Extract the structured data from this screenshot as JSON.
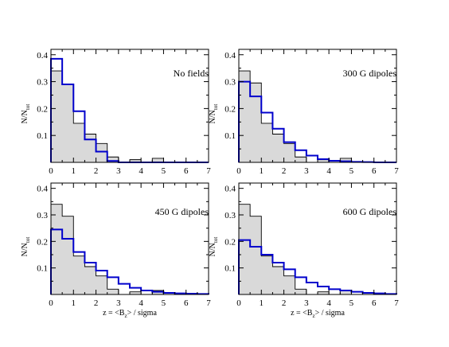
{
  "chart_data": [
    {
      "type": "histogram-step",
      "annotation": "No fields",
      "ylabel": "N/N",
      "ylabel_sub": "tot",
      "xlabel": "",
      "xlim": [
        0,
        7
      ],
      "ylim": [
        0,
        0.42
      ],
      "bin_width": 0.5,
      "x_ticks": [
        "0",
        "1",
        "2",
        "3",
        "4",
        "5",
        "6",
        "7"
      ],
      "y_ticks": [
        "0.1",
        "0.2",
        "0.3",
        "0.4"
      ],
      "y_tick_values": [
        0.1,
        0.2,
        0.3,
        0.4
      ],
      "series": [
        {
          "style": "filled",
          "color": "#d9d9d9",
          "values": [
            0.34,
            0.29,
            0.145,
            0.105,
            0.07,
            0.02,
            0.0,
            0.01,
            0.0,
            0.015,
            0.0,
            0.0,
            0.0,
            0.0
          ]
        },
        {
          "style": "line",
          "color": "#0000cc",
          "values": [
            0.385,
            0.29,
            0.19,
            0.085,
            0.04,
            0.005,
            0.0,
            0.0,
            0.0,
            0.0,
            0.0,
            0.0,
            0.0,
            0.0
          ]
        }
      ]
    },
    {
      "type": "histogram-step",
      "annotation": "300 G dipoles",
      "ylabel": "N/N",
      "ylabel_sub": "tot",
      "xlabel": "",
      "xlim": [
        0,
        7
      ],
      "ylim": [
        0,
        0.42
      ],
      "bin_width": 0.5,
      "x_ticks": [
        "0",
        "1",
        "2",
        "3",
        "4",
        "5",
        "6",
        "7"
      ],
      "y_ticks": [
        "0.1",
        "0.2",
        "0.3",
        "0.4"
      ],
      "y_tick_values": [
        0.1,
        0.2,
        0.3,
        0.4
      ],
      "series": [
        {
          "style": "filled",
          "color": "#d9d9d9",
          "values": [
            0.34,
            0.295,
            0.145,
            0.105,
            0.07,
            0.02,
            0.0,
            0.01,
            0.0,
            0.015,
            0.0,
            0.0,
            0.0,
            0.0
          ]
        },
        {
          "style": "line",
          "color": "#0000cc",
          "values": [
            0.3,
            0.245,
            0.185,
            0.125,
            0.075,
            0.045,
            0.025,
            0.012,
            0.006,
            0.004,
            0.002,
            0.001,
            0.0,
            0.0
          ]
        }
      ]
    },
    {
      "type": "histogram-step",
      "annotation": "450 G dipoles",
      "ylabel": "N/N",
      "ylabel_sub": "tot",
      "xlabel": "z = <B",
      "xlabel_sub": "z",
      "xlabel_rest": "> / sigma",
      "xlim": [
        0,
        7
      ],
      "ylim": [
        0,
        0.42
      ],
      "bin_width": 0.5,
      "x_ticks": [
        "0",
        "1",
        "2",
        "3",
        "4",
        "5",
        "6",
        "7"
      ],
      "y_ticks": [
        "0.1",
        "0.2",
        "0.3",
        "0.4"
      ],
      "y_tick_values": [
        0.1,
        0.2,
        0.3,
        0.4
      ],
      "series": [
        {
          "style": "filled",
          "color": "#d9d9d9",
          "values": [
            0.34,
            0.295,
            0.145,
            0.105,
            0.07,
            0.02,
            0.0,
            0.01,
            0.0,
            0.015,
            0.0,
            0.0,
            0.0,
            0.0
          ]
        },
        {
          "style": "line",
          "color": "#0000cc",
          "values": [
            0.245,
            0.21,
            0.16,
            0.12,
            0.09,
            0.065,
            0.04,
            0.025,
            0.015,
            0.01,
            0.006,
            0.004,
            0.003,
            0.002
          ]
        }
      ]
    },
    {
      "type": "histogram-step",
      "annotation": "600 G dipoles",
      "ylabel": "N/N",
      "ylabel_sub": "tot",
      "xlabel": "z = <B",
      "xlabel_sub": "z",
      "xlabel_rest": "> / sigma",
      "xlim": [
        0,
        7
      ],
      "ylim": [
        0,
        0.42
      ],
      "bin_width": 0.5,
      "x_ticks": [
        "0",
        "1",
        "2",
        "3",
        "4",
        "5",
        "6",
        "7"
      ],
      "y_ticks": [
        "0.1",
        "0.2",
        "0.3",
        "0.4"
      ],
      "y_tick_values": [
        0.1,
        0.2,
        0.3,
        0.4
      ],
      "series": [
        {
          "style": "filled",
          "color": "#d9d9d9",
          "values": [
            0.34,
            0.295,
            0.145,
            0.105,
            0.07,
            0.02,
            0.0,
            0.01,
            0.0,
            0.015,
            0.0,
            0.0,
            0.0,
            0.0
          ]
        },
        {
          "style": "line",
          "color": "#0000cc",
          "values": [
            0.205,
            0.18,
            0.15,
            0.12,
            0.095,
            0.065,
            0.045,
            0.03,
            0.02,
            0.015,
            0.01,
            0.006,
            0.004,
            0.002
          ]
        }
      ]
    }
  ]
}
